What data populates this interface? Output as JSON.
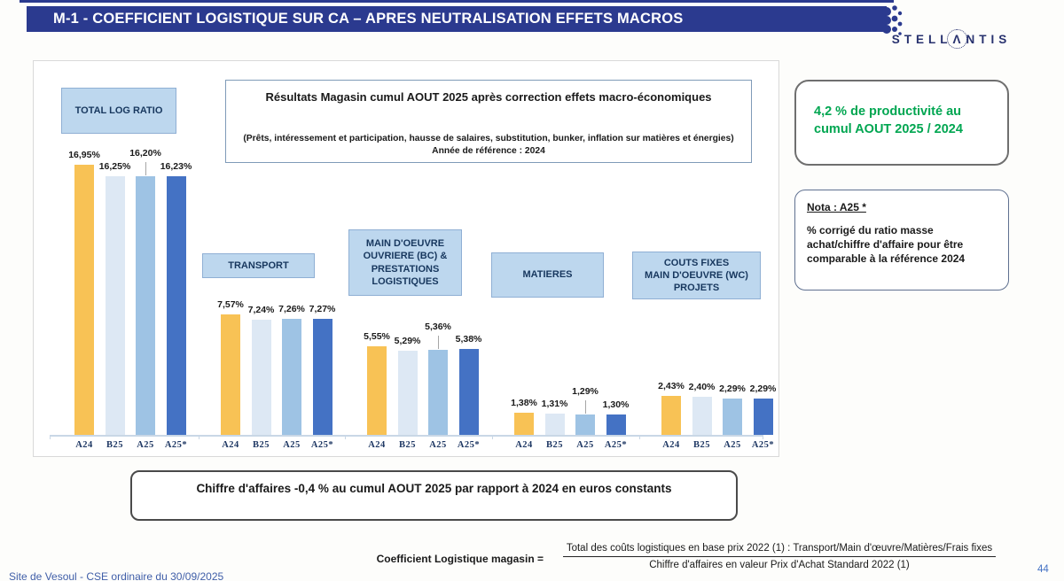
{
  "header": {
    "title": "M-1 - COEFFICIENT LOGISTIQUE SUR CA – APRES NEUTRALISATION EFFETS MACROS",
    "brand": "STELLANTIS",
    "brand_display": {
      "left": "STELL",
      "mid": "Λ",
      "right": "NTIS"
    }
  },
  "colors": {
    "header_navy": "#2b3a8f",
    "accent_green": "#00a651",
    "group_box_fill": "#bdd7ee"
  },
  "info_box": {
    "title": "Résultats Magasin cumul AOUT 2025 après correction effets macro-économiques",
    "line2": "(Prêts, intéressement et participation, hausse de salaires, substitution, bunker, inflation sur matières et énergies)",
    "line3": "Année de référence : 2024"
  },
  "productivity_box": {
    "text": "4,2 % de productivité au cumul AOUT 2025 / 2024"
  },
  "nota_box": {
    "title": "Nota : A25 *",
    "body": "% corrigé du ratio masse achat/chiffre d'affaire pour être comparable à la référence 2024"
  },
  "revenue_box": {
    "text": "Chiffre d'affaires -0,4 % au cumul AOUT 2025 par rapport à 2024  en euros constants"
  },
  "formula": {
    "label": "Coefficient Logistique magasin  =",
    "numerator": "Total des coûts logistiques en base prix 2022 (1) : Transport/Main d'œuvre/Matières/Frais fixes",
    "denominator": "Chiffre d'affaires en valeur Prix d'Achat Standard 2022 (1)"
  },
  "footer": {
    "left": "Site de Vesoul - CSE ordinaire du 30/09/2025",
    "page": "44"
  },
  "chart_data": {
    "type": "bar",
    "categories": [
      "A24",
      "B25",
      "A25",
      "A25*"
    ],
    "bar_colors": [
      "#F8C255",
      "#DDE8F4",
      "#9EC3E4",
      "#4472C4"
    ],
    "ylim": [
      0,
      18
    ],
    "grid": false,
    "value_label_format": "0,00%",
    "groups": [
      {
        "name": "TOTAL LOG RATIO",
        "values": [
          16.95,
          16.25,
          16.2,
          16.23
        ],
        "labels": [
          "16,95%",
          "16,25%",
          "16,20%",
          "16,23%"
        ]
      },
      {
        "name": "TRANSPORT",
        "values": [
          7.57,
          7.24,
          7.26,
          7.27
        ],
        "labels": [
          "7,57%",
          "7,24%",
          "7,26%",
          "7,27%"
        ]
      },
      {
        "name": "MAIN D'OEUVRE\nOUVRIERE  (BC) &\nPRESTATIONS\nLOGISTIQUES",
        "values": [
          5.55,
          5.29,
          5.36,
          5.38
        ],
        "labels": [
          "5,55%",
          "5,29%",
          "5,36%",
          "5,38%"
        ]
      },
      {
        "name": "MATIERES",
        "values": [
          1.38,
          1.31,
          1.29,
          1.3
        ],
        "labels": [
          "1,38%",
          "1,31%",
          "1,29%",
          "1,30%"
        ]
      },
      {
        "name": "COUTS FIXES\nMAIN D'OEUVRE (WC)\nPROJETS",
        "values": [
          2.43,
          2.4,
          2.29,
          2.29
        ],
        "labels": [
          "2,43%",
          "2,40%",
          "2,29%",
          "2,29%"
        ]
      }
    ]
  }
}
